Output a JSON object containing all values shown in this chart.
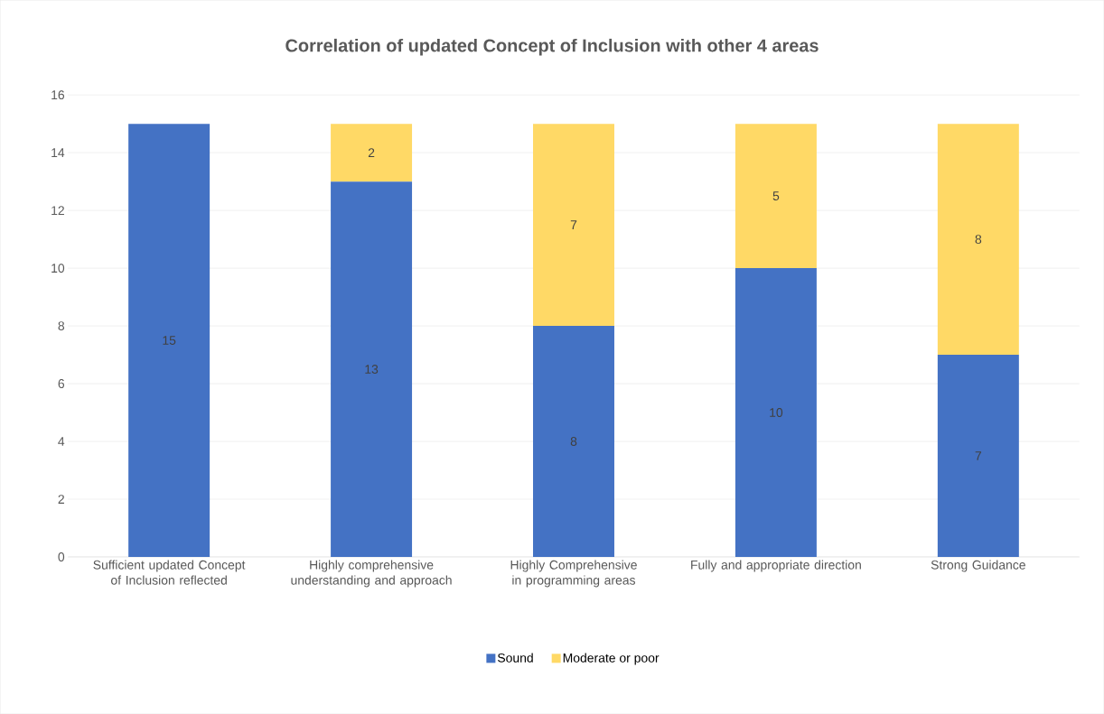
{
  "chart_data": {
    "type": "bar",
    "title": "Correlation of updated Concept of Inclusion with other 4 areas",
    "categories": [
      "Sufficient updated Concept of Inclusion reflected",
      "Highly comprehensive understanding and approach",
      "Highly Comprehensive in programming areas",
      "Fully and appropriate direction",
      "Strong Guidance"
    ],
    "series": [
      {
        "name": "Sound",
        "color": "#4472c4",
        "values": [
          15,
          13,
          8,
          10,
          7
        ]
      },
      {
        "name": "Moderate or poor",
        "color": "#ffd966",
        "values": [
          null,
          2,
          7,
          5,
          8
        ]
      }
    ],
    "stacked": true,
    "ylim": [
      0,
      16
    ],
    "yticks": [
      0,
      2,
      4,
      6,
      8,
      10,
      12,
      14,
      16
    ],
    "grid": "y",
    "legend": "bottom",
    "data_labels": true
  }
}
